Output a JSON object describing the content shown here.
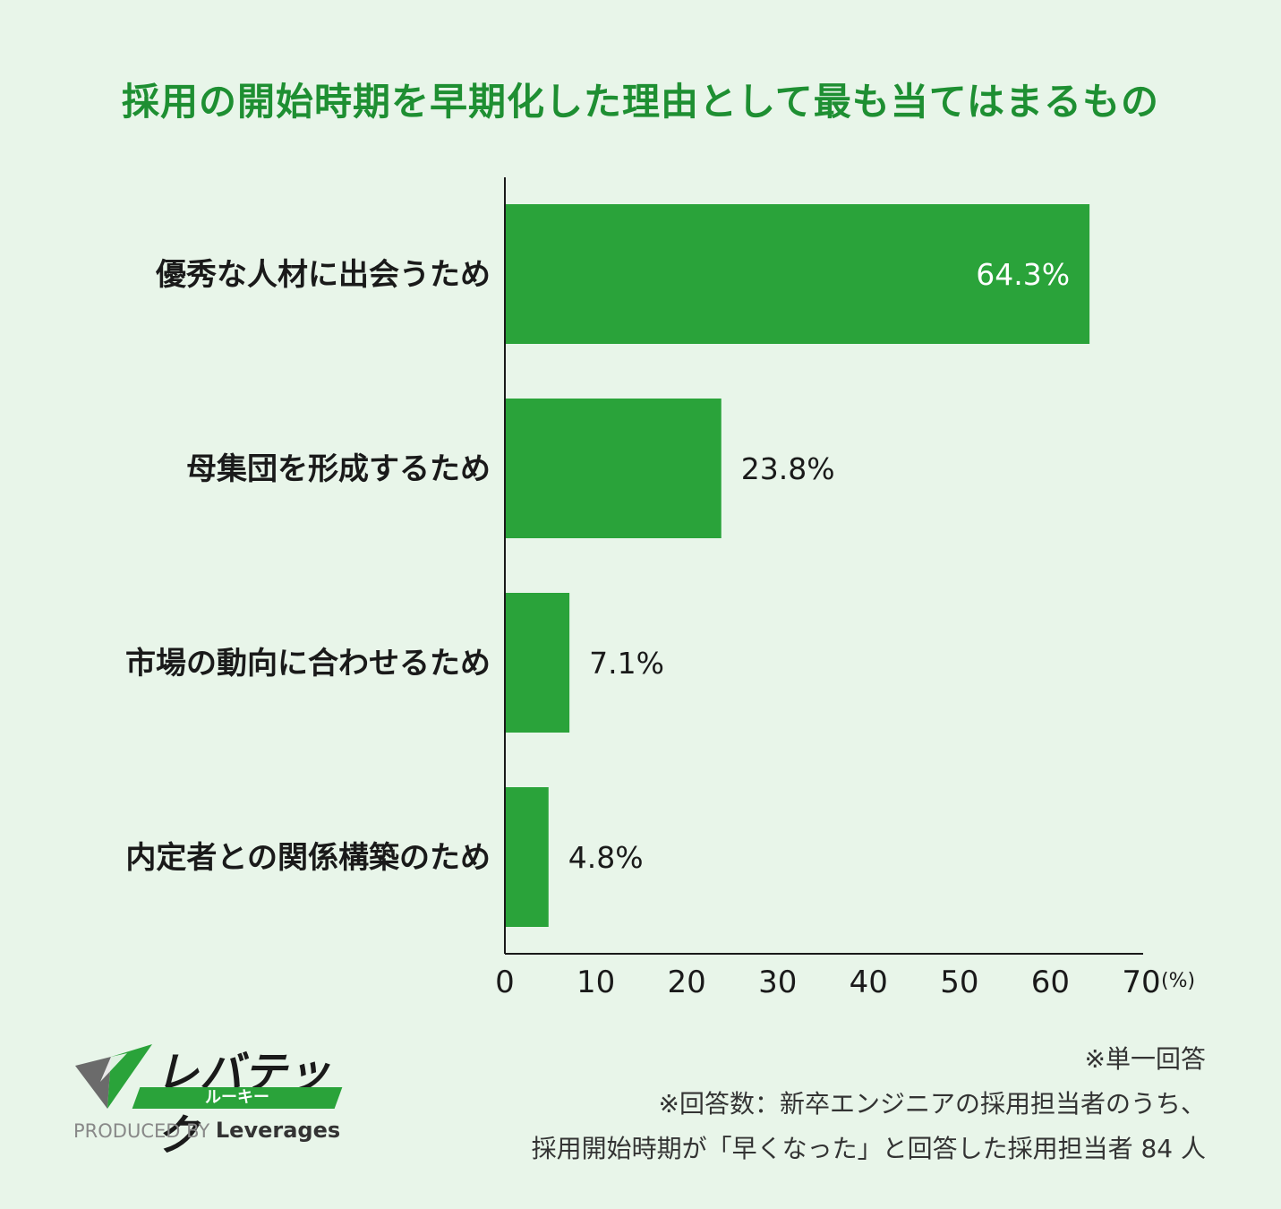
{
  "title": "採用の開始時期を早期化した理由として最も当てはまるもの",
  "chart_data": {
    "type": "bar",
    "orientation": "horizontal",
    "categories": [
      "優秀な人材に出会うため",
      "母集団を形成するため",
      "市場の動向に合わせるため",
      "内定者との関係構築のため"
    ],
    "values": [
      64.3,
      23.8,
      7.1,
      4.8
    ],
    "value_labels": [
      "64.3%",
      "23.8%",
      "7.1%",
      "4.8%"
    ],
    "xlim": [
      0,
      70
    ],
    "xticks": [
      0,
      10,
      20,
      30,
      40,
      50,
      60,
      70
    ],
    "xunit": "(%)",
    "grid": false,
    "bar_color": "#2aa33a"
  },
  "notes": {
    "line1": "※単一回答",
    "line2": "※回答数：新卒エンジニアの採用担当者のうち、",
    "line3": "採用開始時期が「早くなった」と回答した採用担当者 84 人"
  },
  "logo": {
    "brand": "レバテック",
    "sub": "ルーキー",
    "produced_by": "PRODUCED BY",
    "company": "Leverages"
  }
}
